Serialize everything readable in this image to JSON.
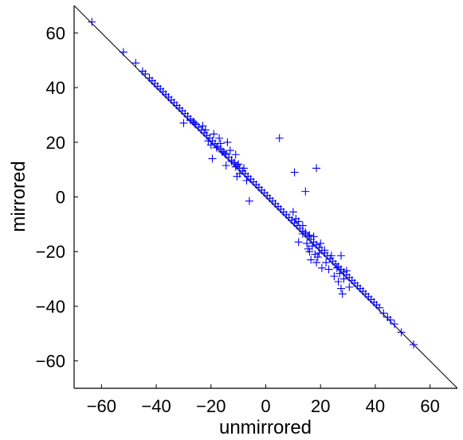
{
  "chart_data": {
    "type": "scatter",
    "title": "",
    "xlabel": "unmirrored",
    "ylabel": "mirrored",
    "xlim": [
      -70,
      70
    ],
    "ylim": [
      -70,
      70
    ],
    "xticks": [
      -60,
      -40,
      -20,
      0,
      20,
      40,
      60
    ],
    "yticks": [
      -60,
      -40,
      -20,
      0,
      20,
      40,
      60
    ],
    "xtick_labels": [
      "−60",
      "−40",
      "−20",
      "0",
      "20",
      "40",
      "60"
    ],
    "ytick_labels": [
      "−60",
      "−40",
      "−20",
      "0",
      "20",
      "40",
      "60"
    ],
    "grid": false,
    "reference_line": {
      "slope": -1,
      "intercept": 0,
      "color": "#000000"
    },
    "marker": "+",
    "marker_color": "#0000ff",
    "series": [
      {
        "points": [
          [
            -63.5,
            64
          ],
          [
            -52,
            53
          ],
          [
            -47.5,
            49
          ],
          [
            -45,
            46
          ],
          [
            -44,
            45
          ],
          [
            -42.5,
            43.5
          ],
          [
            -41.5,
            42.5
          ],
          [
            -40.5,
            41.5
          ],
          [
            -39.5,
            40.5
          ],
          [
            -38.5,
            39.5
          ],
          [
            -37.5,
            38.5
          ],
          [
            -36.5,
            37.5
          ],
          [
            -35.5,
            36.5
          ],
          [
            -34.5,
            35.5
          ],
          [
            -33.5,
            34.5
          ],
          [
            -32.5,
            33.5
          ],
          [
            -31.5,
            32.5
          ],
          [
            -30.5,
            31.5
          ],
          [
            -29.5,
            30.5
          ],
          [
            -28.5,
            29.5
          ],
          [
            -27.5,
            28.5
          ],
          [
            -26.5,
            27.5
          ],
          [
            -25.5,
            26.5
          ],
          [
            -24.5,
            25.5
          ],
          [
            -23.5,
            24.5
          ],
          [
            -22.5,
            23.5
          ],
          [
            -21.5,
            22.5
          ],
          [
            -20.5,
            21.5
          ],
          [
            -19.5,
            20.5
          ],
          [
            -18.5,
            19.5
          ],
          [
            -17.5,
            18.5
          ],
          [
            -16.5,
            17.5
          ],
          [
            -15.5,
            16.5
          ],
          [
            -14.5,
            15.5
          ],
          [
            -13.5,
            14.5
          ],
          [
            -12.5,
            13.5
          ],
          [
            -11.5,
            12.5
          ],
          [
            -10.5,
            11.5
          ],
          [
            -9.5,
            10.5
          ],
          [
            -8.5,
            9.5
          ],
          [
            -7.5,
            8.5
          ],
          [
            -6.5,
            7.5
          ],
          [
            -5.5,
            6.5
          ],
          [
            -4.5,
            5.5
          ],
          [
            -3.5,
            4.5
          ],
          [
            -2.5,
            3.5
          ],
          [
            -1.5,
            2.5
          ],
          [
            -0.5,
            1.5
          ],
          [
            0.5,
            0.5
          ],
          [
            1.5,
            -0.5
          ],
          [
            2.5,
            -1.5
          ],
          [
            3.5,
            -2.5
          ],
          [
            4.5,
            -3.5
          ],
          [
            5.5,
            -4.5
          ],
          [
            6.5,
            -5.5
          ],
          [
            7.5,
            -6.5
          ],
          [
            8.5,
            -7.5
          ],
          [
            9.5,
            -8.5
          ],
          [
            10.5,
            -9.5
          ],
          [
            11.5,
            -10.5
          ],
          [
            12.5,
            -11.5
          ],
          [
            13.5,
            -12.5
          ],
          [
            14.5,
            -13.5
          ],
          [
            15.5,
            -14.5
          ],
          [
            16.5,
            -15.5
          ],
          [
            17.5,
            -16.5
          ],
          [
            18.5,
            -17.5
          ],
          [
            19.5,
            -18.5
          ],
          [
            20.5,
            -19.5
          ],
          [
            21.5,
            -20.5
          ],
          [
            22.5,
            -21.5
          ],
          [
            23.5,
            -22.5
          ],
          [
            24.5,
            -23.5
          ],
          [
            25.5,
            -24.5
          ],
          [
            26.5,
            -25.5
          ],
          [
            27.5,
            -26.5
          ],
          [
            28.5,
            -27.5
          ],
          [
            29.5,
            -28.5
          ],
          [
            30.5,
            -29.5
          ],
          [
            31.5,
            -30.5
          ],
          [
            32.5,
            -31.5
          ],
          [
            33.5,
            -32.5
          ],
          [
            34.5,
            -33.5
          ],
          [
            35.5,
            -34.5
          ],
          [
            36.5,
            -35.5
          ],
          [
            37.5,
            -36.5
          ],
          [
            38.5,
            -37.5
          ],
          [
            39.5,
            -38.5
          ],
          [
            40.5,
            -39.5
          ],
          [
            41.5,
            -40.5
          ],
          [
            43,
            -42.5
          ],
          [
            44.5,
            -44
          ],
          [
            45.5,
            -45
          ],
          [
            47,
            -46.5
          ],
          [
            49.5,
            -49.5
          ],
          [
            54,
            -54
          ],
          [
            -30,
            27
          ],
          [
            -27.5,
            28
          ],
          [
            -26,
            27
          ],
          [
            -23,
            26
          ],
          [
            -22,
            24.5
          ],
          [
            -21,
            20.5
          ],
          [
            -20,
            19
          ],
          [
            -19,
            23
          ],
          [
            -18,
            18
          ],
          [
            -17,
            21.5
          ],
          [
            -16.5,
            19.5
          ],
          [
            -15,
            16
          ],
          [
            -14,
            20
          ],
          [
            -13,
            17
          ],
          [
            -12.5,
            13
          ],
          [
            -11,
            15.5
          ],
          [
            -10,
            12
          ],
          [
            -9.5,
            8.5
          ],
          [
            -8,
            10.5
          ],
          [
            -7,
            6
          ],
          [
            -6,
            -1.5
          ],
          [
            -19.5,
            14
          ],
          [
            -14.5,
            11.5
          ],
          [
            -11,
            11
          ],
          [
            -10.5,
            7.5
          ],
          [
            -16,
            16.5
          ],
          [
            5,
            21.5
          ],
          [
            10.5,
            9
          ],
          [
            14.5,
            2
          ],
          [
            18.5,
            10.5
          ],
          [
            10,
            -5.5
          ],
          [
            11,
            -8
          ],
          [
            12,
            -9
          ],
          [
            13.5,
            -10.5
          ],
          [
            14.5,
            -13
          ],
          [
            15,
            -17
          ],
          [
            15.5,
            -19
          ],
          [
            16,
            -20
          ],
          [
            16.5,
            -23
          ],
          [
            17,
            -18
          ],
          [
            17.5,
            -14.5
          ],
          [
            18,
            -21
          ],
          [
            18.5,
            -24
          ],
          [
            19,
            -22
          ],
          [
            20,
            -17
          ],
          [
            20.5,
            -26
          ],
          [
            21.5,
            -19.5
          ],
          [
            22,
            -24
          ],
          [
            23,
            -26.5
          ],
          [
            24,
            -21.5
          ],
          [
            25,
            -29
          ],
          [
            26,
            -26
          ],
          [
            26.5,
            -31
          ],
          [
            27,
            -28
          ],
          [
            27.5,
            -33.5
          ],
          [
            28,
            -35.5
          ],
          [
            28.5,
            -30
          ],
          [
            29.5,
            -27
          ],
          [
            30.5,
            -33
          ],
          [
            27.5,
            -21.5
          ],
          [
            12,
            -16.5
          ],
          [
            13.5,
            -13.5
          ],
          [
            16,
            -14
          ],
          [
            19.5,
            -20.5
          ]
        ]
      }
    ]
  }
}
